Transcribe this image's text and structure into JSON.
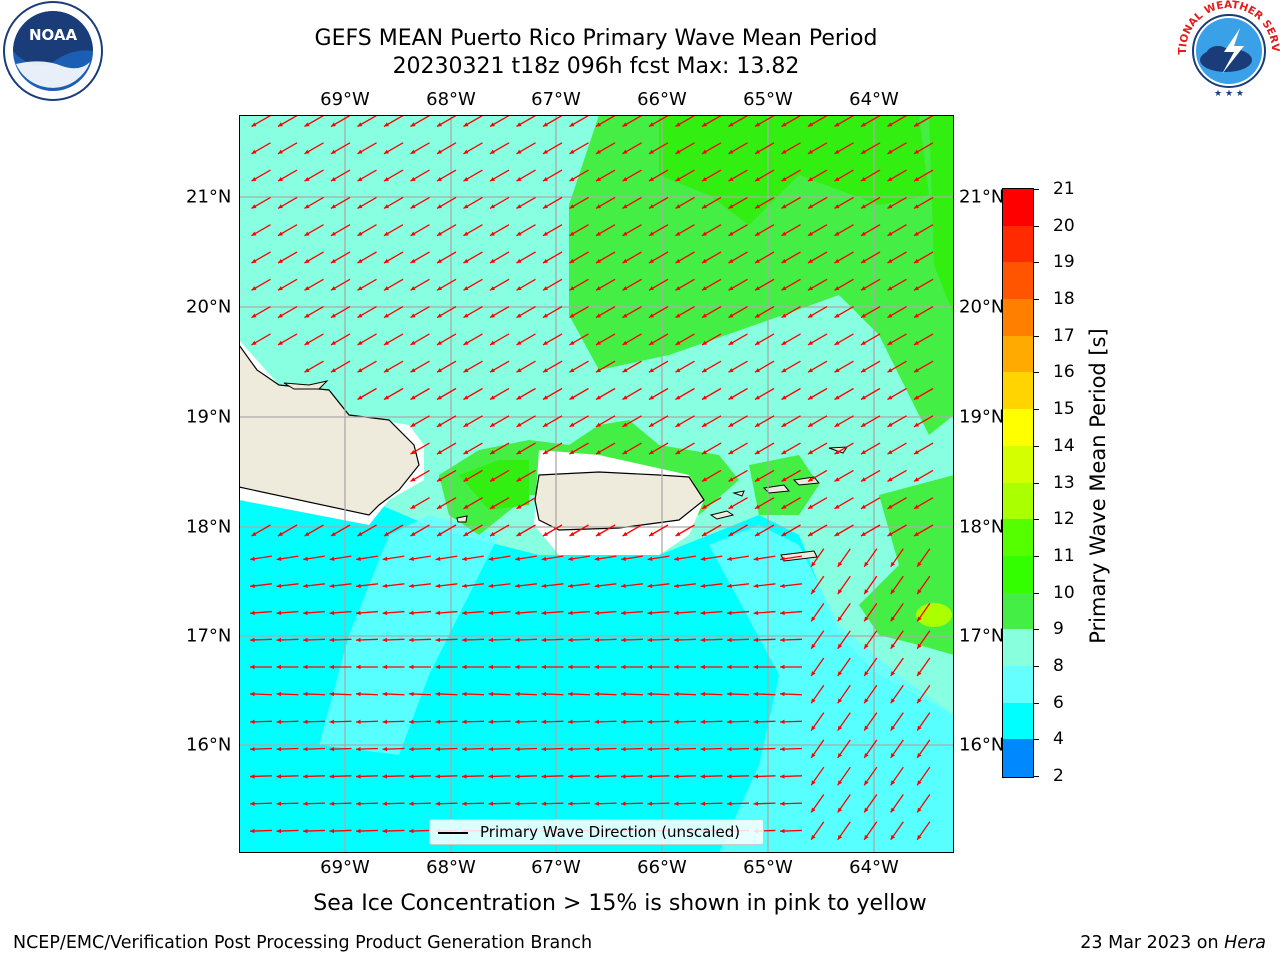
{
  "header": {
    "title_line1": "GEFS MEAN Puerto Rico Primary Wave Mean Period",
    "title_line2": "20230321 t18z 096h fcst   Max: 13.82"
  },
  "map": {
    "lon_labels": [
      "69°W",
      "68°W",
      "67°W",
      "66°W",
      "65°W",
      "64°W"
    ],
    "lat_labels": [
      "21°N",
      "20°N",
      "19°N",
      "18°N",
      "17°N",
      "16°N"
    ],
    "legend_label": "Primary Wave Direction (unscaled)",
    "arrow_color": "#ff0000",
    "land_color": "#efebdc"
  },
  "colorbar": {
    "title": "Primary Wave Mean Period [s]",
    "ticks": [
      "21",
      "20",
      "19",
      "18",
      "17",
      "16",
      "15",
      "14",
      "13",
      "12",
      "11",
      "10",
      "9",
      "8",
      "6",
      "4",
      "2"
    ],
    "colors": [
      "#ff0000",
      "#ff2a00",
      "#ff5500",
      "#ff8000",
      "#ffaa00",
      "#ffd400",
      "#ffff00",
      "#d4ff00",
      "#aaff00",
      "#55ff00",
      "#33ff00",
      "#44ee44",
      "#88ffdd",
      "#66ffff",
      "#00ffff",
      "#0088ff",
      "#0000ff"
    ]
  },
  "subnote": "Sea Ice Concentration > 15% is shown in pink to yellow",
  "footer": {
    "left": "NCEP/EMC/Verification Post Processing Product Generation Branch",
    "right_date": "23 Mar 2023 on ",
    "right_host": "Hera"
  },
  "logos": {
    "noaa_text": "NOAA",
    "nws_text": "NATIONAL WEATHER SERVICE"
  }
}
